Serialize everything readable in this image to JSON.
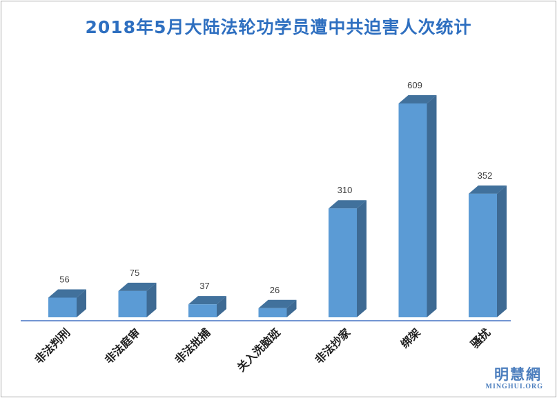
{
  "chart_data": {
    "type": "bar",
    "title": "2018年5月大陆法轮功学员遭中共迫害人次统计",
    "categories": [
      "非法判刑",
      "非法庭审",
      "非法批捕",
      "关入洗脑班",
      "非法抄家",
      "绑架",
      "骚扰"
    ],
    "values": [
      56,
      75,
      37,
      26,
      310,
      609,
      352
    ],
    "ylim": [
      0,
      609
    ],
    "grid": false,
    "legend": "none",
    "colors": {
      "front": "#5b9bd5",
      "top": "#41719c",
      "side": "#3e6a93",
      "axis": "#4472c4",
      "title": "#2e6fc0"
    }
  },
  "watermark": {
    "cn": "明慧網",
    "en": "MINGHUI.ORG"
  }
}
